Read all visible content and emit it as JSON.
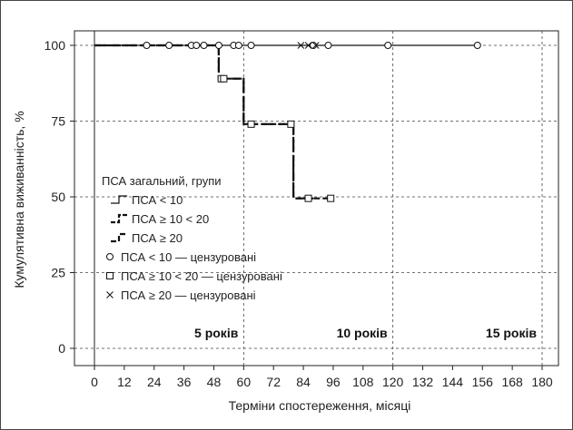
{
  "chart_data": {
    "type": "line",
    "subtype": "kaplan-meier survival curve",
    "xlabel": "Терміни спостереження, місяці",
    "ylabel": "Кумулятивна виживанність, %",
    "xlim": [
      0,
      180
    ],
    "ylim": [
      0,
      100
    ],
    "x_ticks": [
      "0",
      "12",
      "24",
      "36",
      "48",
      "60",
      "72",
      "84",
      "96",
      "108",
      "120",
      "132",
      "144",
      "156",
      "168",
      "180"
    ],
    "y_ticks": [
      "0",
      "25",
      "50",
      "75",
      "100"
    ],
    "grid": "dashed",
    "legend": {
      "title": "ПСА загальний, групи",
      "placement": "center-left",
      "entries": [
        {
          "label": "ПСА < 10",
          "kind": "line",
          "style": "solid"
        },
        {
          "label": "ПСА ≥ 10 < 20",
          "kind": "line",
          "style": "dash"
        },
        {
          "label": "ПСА ≥ 20",
          "kind": "line",
          "style": "long-dash"
        },
        {
          "label": "ПСА < 10 — цензуровані",
          "kind": "marker",
          "marker": "circle"
        },
        {
          "label": "ПСА ≥ 10 < 20 — цензуровані",
          "kind": "marker",
          "marker": "square"
        },
        {
          "label": "ПСА ≥ 20 — цензуровані",
          "kind": "marker",
          "marker": "x"
        }
      ]
    },
    "series": [
      {
        "name": "ПСА < 10",
        "style": "solid",
        "steps": [
          [
            0,
            100
          ],
          [
            154,
            100
          ]
        ],
        "censored": [
          [
            21,
            100
          ],
          [
            30,
            100
          ],
          [
            39,
            100
          ],
          [
            41,
            100
          ],
          [
            44,
            100
          ],
          [
            50,
            100
          ],
          [
            56,
            100
          ],
          [
            58,
            100
          ],
          [
            63,
            100
          ],
          [
            88,
            100
          ],
          [
            94,
            100
          ],
          [
            118,
            100
          ],
          [
            154,
            100
          ]
        ]
      },
      {
        "name": "ПСА ≥ 10 < 20",
        "style": "dash",
        "steps": [
          [
            0,
            100
          ],
          [
            50,
            100
          ],
          [
            50,
            89
          ],
          [
            60,
            89
          ],
          [
            60,
            74
          ],
          [
            80,
            74
          ],
          [
            80,
            49.5
          ],
          [
            95,
            49.5
          ]
        ],
        "censored": [
          [
            51,
            89
          ],
          [
            52,
            89
          ],
          [
            63,
            74
          ],
          [
            79,
            74
          ],
          [
            86,
            49.5
          ],
          [
            95,
            49.5
          ]
        ]
      },
      {
        "name": "ПСА ≥ 20",
        "style": "long-dash",
        "steps": [
          [
            0,
            100
          ],
          [
            50,
            100
          ],
          [
            50,
            89
          ],
          [
            60,
            89
          ],
          [
            60,
            74
          ],
          [
            80,
            74
          ],
          [
            80,
            49.5
          ],
          [
            88,
            49.5
          ]
        ],
        "censored": [
          [
            83,
            100
          ],
          [
            86,
            100
          ],
          [
            89,
            100
          ]
        ]
      }
    ],
    "reference_lines": [
      {
        "x": 60,
        "label": "5 років"
      },
      {
        "x": 120,
        "label": "10 років"
      },
      {
        "x": 180,
        "label": "15 років"
      }
    ]
  }
}
